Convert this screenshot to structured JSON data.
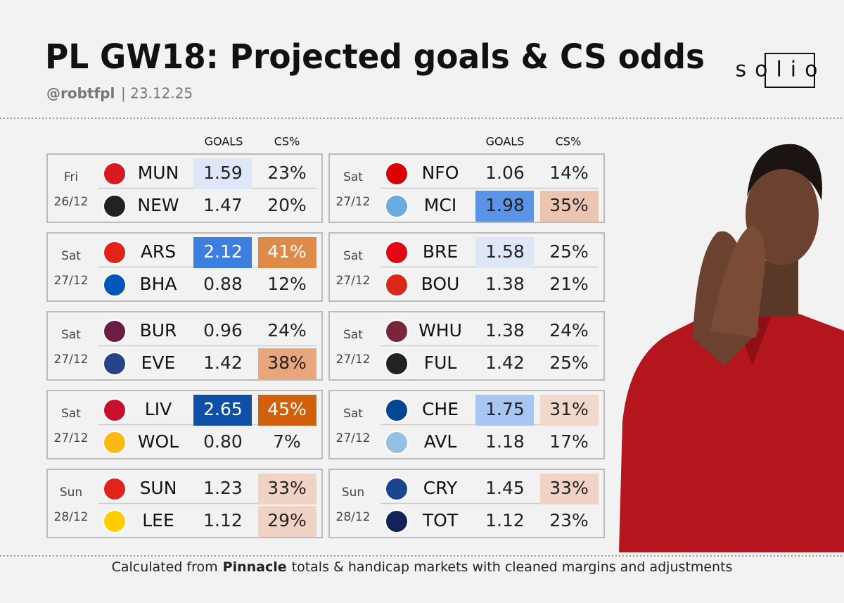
{
  "header": {
    "title": "PL GW18: Projected goals & CS odds",
    "handle": "@robtfpl",
    "date": "| 23.12.25",
    "brand": "solio"
  },
  "columns": {
    "goals": "GOALS",
    "cs": "CS%"
  },
  "fixtures": [
    {
      "day": "Fri",
      "date": "26/12",
      "teams": [
        {
          "code": "MUN",
          "goals": "1.59",
          "cs": "23%",
          "goals_bg": "#dde7f7"
        },
        {
          "code": "NEW",
          "goals": "1.47",
          "cs": "20%"
        }
      ]
    },
    {
      "day": "Sat",
      "date": "27/12",
      "teams": [
        {
          "code": "ARS",
          "goals": "2.12",
          "cs": "41%",
          "goals_bg": "#3d7fe0",
          "goals_fg": "#ffffff",
          "cs_bg": "#e08a4a",
          "cs_fg": "#ffffff"
        },
        {
          "code": "BHA",
          "goals": "0.88",
          "cs": "12%"
        }
      ]
    },
    {
      "day": "Sat",
      "date": "27/12",
      "teams": [
        {
          "code": "BUR",
          "goals": "0.96",
          "cs": "24%"
        },
        {
          "code": "EVE",
          "goals": "1.42",
          "cs": "38%",
          "cs_bg": "#e8a67c"
        }
      ]
    },
    {
      "day": "Sat",
      "date": "27/12",
      "teams": [
        {
          "code": "LIV",
          "goals": "2.65",
          "cs": "45%",
          "goals_bg": "#0f4fa8",
          "goals_fg": "#ffffff",
          "cs_bg": "#d0600c",
          "cs_fg": "#ffffff"
        },
        {
          "code": "WOL",
          "goals": "0.80",
          "cs": "7%"
        }
      ]
    },
    {
      "day": "Sun",
      "date": "28/12",
      "teams": [
        {
          "code": "SUN",
          "goals": "1.23",
          "cs": "33%",
          "cs_bg": "#f0d3c5"
        },
        {
          "code": "LEE",
          "goals": "1.12",
          "cs": "29%",
          "cs_bg": "#f0d3c5"
        }
      ]
    },
    {
      "day": "Sat",
      "date": "27/12",
      "teams": [
        {
          "code": "NFO",
          "goals": "1.06",
          "cs": "14%"
        },
        {
          "code": "MCI",
          "goals": "1.98",
          "cs": "35%",
          "goals_bg": "#5b93e6",
          "cs_bg": "#ecc5b0"
        }
      ]
    },
    {
      "day": "Sat",
      "date": "27/12",
      "teams": [
        {
          "code": "BRE",
          "goals": "1.58",
          "cs": "25%",
          "goals_bg": "#dde7f7"
        },
        {
          "code": "BOU",
          "goals": "1.38",
          "cs": "21%"
        }
      ]
    },
    {
      "day": "Sat",
      "date": "27/12",
      "teams": [
        {
          "code": "WHU",
          "goals": "1.38",
          "cs": "24%"
        },
        {
          "code": "FUL",
          "goals": "1.42",
          "cs": "25%"
        }
      ]
    },
    {
      "day": "Sat",
      "date": "27/12",
      "teams": [
        {
          "code": "CHE",
          "goals": "1.75",
          "cs": "31%",
          "goals_bg": "#a9c6f2",
          "cs_bg": "#f0d8cc"
        },
        {
          "code": "AVL",
          "goals": "1.18",
          "cs": "17%"
        }
      ]
    },
    {
      "day": "Sun",
      "date": "28/12",
      "teams": [
        {
          "code": "CRY",
          "goals": "1.45",
          "cs": "33%",
          "cs_bg": "#f0d3c5"
        },
        {
          "code": "TOT",
          "goals": "1.12",
          "cs": "23%"
        }
      ]
    }
  ],
  "footer": {
    "pre": "Calculated from",
    "source": "Pinnacle",
    "post": "totals & handicap markets with cleaned margins and adjustments"
  }
}
